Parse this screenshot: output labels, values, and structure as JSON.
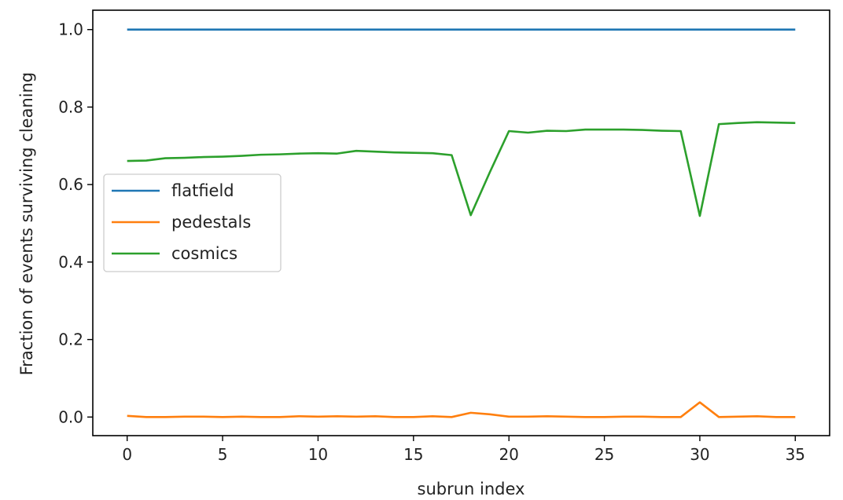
{
  "chart_data": {
    "type": "line",
    "xlabel": "subrun index",
    "ylabel": "Fraction of events surviving cleaning",
    "xlim": [
      -1.8,
      36.8
    ],
    "ylim": [
      -0.048,
      1.05
    ],
    "xticks": [
      0,
      5,
      10,
      15,
      20,
      25,
      30,
      35
    ],
    "xtick_labels": [
      "0",
      "5",
      "10",
      "15",
      "20",
      "25",
      "30",
      "35"
    ],
    "yticks": [
      0.0,
      0.2,
      0.4,
      0.6,
      0.8,
      1.0
    ],
    "ytick_labels": [
      "0.0",
      "0.2",
      "0.4",
      "0.6",
      "0.8",
      "1.0"
    ],
    "grid": false,
    "legend_position": "center-left",
    "x": [
      0,
      1,
      2,
      3,
      4,
      5,
      6,
      7,
      8,
      9,
      10,
      11,
      12,
      13,
      14,
      15,
      16,
      17,
      18,
      19,
      20,
      21,
      22,
      23,
      24,
      25,
      26,
      27,
      28,
      29,
      30,
      31,
      32,
      33,
      34,
      35
    ],
    "series": [
      {
        "name": "flatfield",
        "color": "#1f77b4",
        "values": [
          1.0,
          1.0,
          1.0,
          1.0,
          1.0,
          1.0,
          1.0,
          1.0,
          1.0,
          1.0,
          1.0,
          1.0,
          1.0,
          1.0,
          1.0,
          1.0,
          1.0,
          1.0,
          1.0,
          1.0,
          1.0,
          1.0,
          1.0,
          1.0,
          1.0,
          1.0,
          1.0,
          1.0,
          1.0,
          1.0,
          1.0,
          1.0,
          1.0,
          1.0,
          1.0,
          1.0
        ]
      },
      {
        "name": "pedestals",
        "color": "#ff7f0e",
        "values": [
          0.003,
          0.0,
          0.0,
          0.001,
          0.001,
          0.0,
          0.001,
          0.0,
          0.0,
          0.002,
          0.001,
          0.002,
          0.001,
          0.002,
          0.0,
          0.0,
          0.002,
          0.0,
          0.011,
          0.007,
          0.001,
          0.001,
          0.002,
          0.001,
          0.0,
          0.0,
          0.001,
          0.001,
          0.0,
          0.0,
          0.038,
          0.0,
          0.001,
          0.002,
          0.0,
          0.0
        ]
      },
      {
        "name": "cosmics",
        "color": "#2ca02c",
        "values": [
          0.661,
          0.662,
          0.668,
          0.669,
          0.671,
          0.672,
          0.674,
          0.677,
          0.678,
          0.68,
          0.681,
          0.68,
          0.687,
          0.685,
          0.683,
          0.682,
          0.681,
          0.676,
          0.521,
          0.632,
          0.738,
          0.734,
          0.739,
          0.738,
          0.742,
          0.742,
          0.742,
          0.741,
          0.739,
          0.738,
          0.519,
          0.756,
          0.759,
          0.761,
          0.76,
          0.759
        ]
      }
    ]
  }
}
